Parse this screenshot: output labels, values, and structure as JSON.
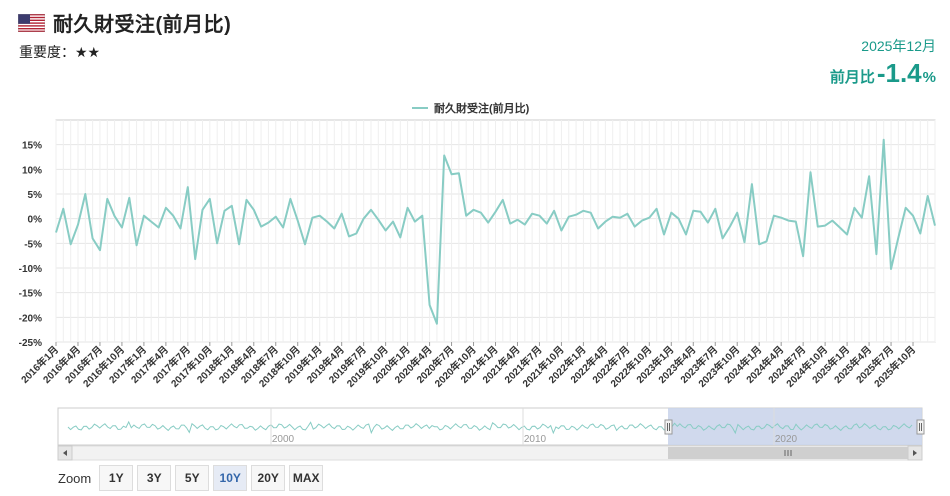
{
  "header": {
    "title": "耐久財受注(前月比)",
    "flag_icon": "us-flag-icon",
    "importance_label": "重要度：",
    "importance_stars": "★★",
    "release_period": "2025年12月",
    "latest_label": "前月比",
    "latest_value": "-1.4",
    "latest_unit": "%"
  },
  "colors": {
    "series": "#88ccc4",
    "accent": "#1a9a8a",
    "navigator_mask": "#c8d2ea",
    "grid": "#e6e6e6"
  },
  "chart_data": {
    "type": "line",
    "title": "",
    "legend": {
      "position": "top-center"
    },
    "series": [
      {
        "name": "耐久財受注(前月比)",
        "values": [
          -2.8,
          2.0,
          -5.2,
          -1.2,
          5.0,
          -4.0,
          -6.4,
          4.0,
          0.5,
          -1.8,
          4.2,
          -5.4,
          0.6,
          -0.6,
          -1.8,
          2.2,
          0.6,
          -2.0,
          6.4,
          -8.2,
          1.8,
          4.0,
          -5.0,
          1.6,
          2.6,
          -5.2,
          3.8,
          1.8,
          -1.6,
          -0.8,
          0.4,
          -1.8,
          4.0,
          -0.4,
          -5.2,
          0.2,
          0.6,
          -0.6,
          -2.0,
          1.0,
          -3.6,
          -3.0,
          0.0,
          1.8,
          -0.2,
          -2.4,
          -0.6,
          -3.8,
          2.2,
          -0.6,
          0.6,
          -17.5,
          -21.3,
          12.8,
          9.0,
          9.2,
          0.6,
          1.8,
          1.2,
          -0.8,
          1.4,
          3.8,
          -1.0,
          -0.2,
          -1.2,
          1.0,
          0.6,
          -1.0,
          1.6,
          -2.4,
          0.4,
          0.8,
          1.6,
          1.2,
          -2.0,
          -0.6,
          0.4,
          0.2,
          1.0,
          -1.6,
          -0.4,
          0.2,
          2.0,
          -3.2,
          1.2,
          0.0,
          -3.2,
          1.6,
          1.4,
          -0.8,
          2.0,
          -4.0,
          -1.6,
          1.2,
          -4.8,
          7.0,
          -5.2,
          -4.6,
          0.6,
          0.2,
          -0.4,
          -0.6,
          -7.6,
          9.4,
          -1.6,
          -1.4,
          -0.4,
          -1.8,
          -3.2,
          2.2,
          0.2,
          8.6,
          -7.2,
          16.0,
          -10.2,
          -3.8,
          2.2,
          0.6,
          -3.0,
          4.6,
          -1.4
        ]
      }
    ],
    "x_tick_labels": [
      "2016年1月",
      "2016年4月",
      "2016年7月",
      "2016年10月",
      "2017年1月",
      "2017年4月",
      "2017年7月",
      "2017年10月",
      "2018年1月",
      "2018年4月",
      "2018年7月",
      "2018年10月",
      "2019年1月",
      "2019年4月",
      "2019年7月",
      "2019年10月",
      "2020年1月",
      "2020年4月",
      "2020年7月",
      "2020年10月",
      "2021年1月",
      "2021年4月",
      "2021年7月",
      "2021年10月",
      "2022年1月",
      "2022年4月",
      "2022年7月",
      "2022年10月",
      "2023年1月",
      "2023年4月",
      "2023年7月",
      "2023年10月",
      "2024年1月",
      "2024年4月",
      "2024年7月",
      "2024年10月",
      "2025年1月",
      "2025年4月",
      "2025年7月",
      "2025年10月"
    ],
    "y_ticks": [
      15,
      10,
      5,
      0,
      -5,
      -10,
      -15,
      -20,
      -25
    ],
    "y_tick_labels": [
      "15%",
      "10%",
      "5%",
      "0%",
      "-5%",
      "-10%",
      "-15%",
      "-20%",
      "-25%"
    ],
    "ylim": [
      -25,
      20
    ],
    "grid": true,
    "navigator": {
      "year_labels": [
        "2000",
        "2010",
        "2020"
      ],
      "selected_range": "10Y"
    }
  },
  "zoom": {
    "label": "Zoom",
    "buttons": [
      "1Y",
      "3Y",
      "5Y",
      "10Y",
      "20Y",
      "MAX"
    ],
    "active": "10Y"
  }
}
